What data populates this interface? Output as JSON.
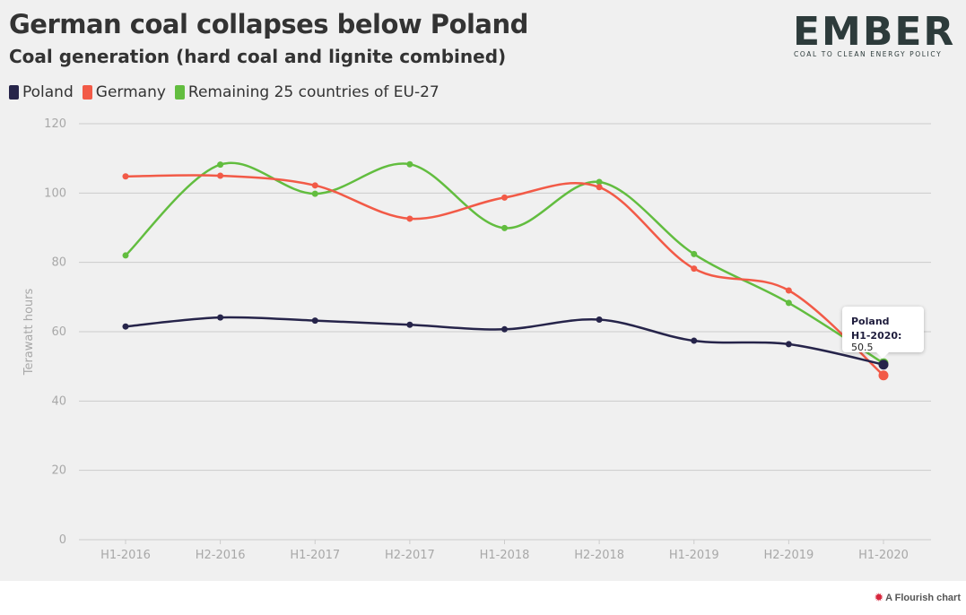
{
  "header": {
    "title": "German coal collapses below Poland",
    "subtitle": "Coal generation (hard coal and lignite combined)"
  },
  "logo": {
    "wordmark": "EMBER",
    "tagline": "COAL TO CLEAN ENERGY POLICY"
  },
  "tooltip": {
    "series": "Poland",
    "label": "H1-2020:",
    "value": "50.5"
  },
  "credit": {
    "icon": "flourish-logo-icon",
    "text": "A Flourish chart"
  },
  "colors": {
    "poland": "#26244a",
    "germany": "#f25a47",
    "remaining": "#62bd3f",
    "background": "#f0f0f0",
    "grid": "#cccccc"
  },
  "chart_data": {
    "type": "line",
    "title": "German coal collapses below Poland",
    "subtitle": "Coal generation (hard coal and lignite combined)",
    "xlabel": "",
    "ylabel": "Terawatt hours",
    "ylim": [
      0,
      120
    ],
    "yticks": [
      0,
      20,
      40,
      60,
      80,
      100,
      120
    ],
    "grid": true,
    "legend": "top-left",
    "categories": [
      "H1-2016",
      "H2-2016",
      "H1-2017",
      "H2-2017",
      "H1-2018",
      "H2-2018",
      "H1-2019",
      "H2-2019",
      "H1-2020"
    ],
    "series": [
      {
        "name": "Poland",
        "color": "#26244a",
        "values": [
          61.5,
          64.1,
          63.2,
          62.0,
          60.7,
          63.5,
          57.4,
          56.4,
          50.5
        ]
      },
      {
        "name": "Germany",
        "color": "#f25a47",
        "values": [
          104.8,
          105.0,
          102.2,
          92.6,
          98.7,
          101.7,
          78.2,
          71.9,
          47.4
        ]
      },
      {
        "name": "Remaining 25 countries of EU-27",
        "color": "#62bd3f",
        "values": [
          82.0,
          108.2,
          99.8,
          108.3,
          89.9,
          103.2,
          82.4,
          68.3,
          50.9
        ]
      }
    ]
  }
}
